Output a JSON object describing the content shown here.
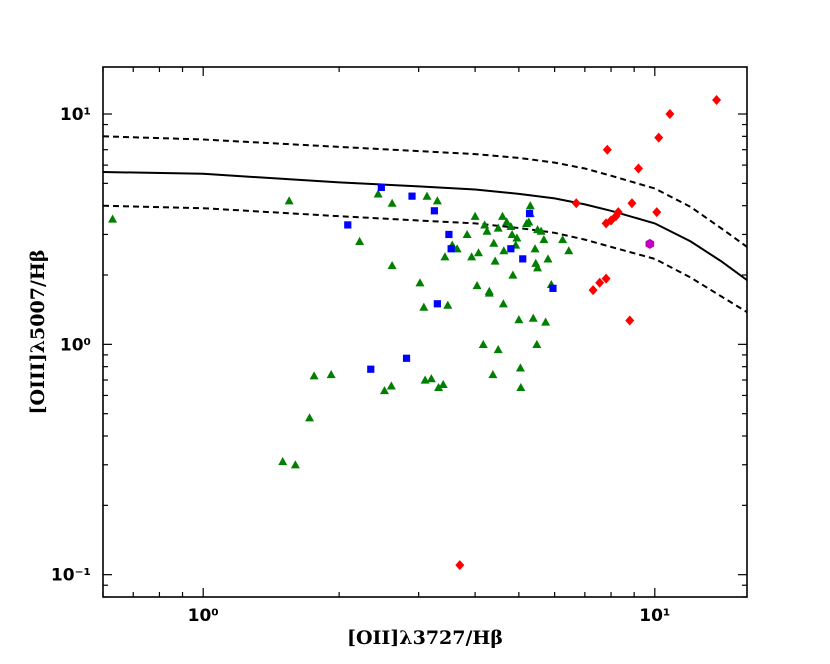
{
  "chart_data": {
    "type": "scatter",
    "title": "",
    "xlabel": "[OII]λ3727/Hβ",
    "ylabel": "[OIII]λ5007/Hβ",
    "x_scale": "log",
    "y_scale": "log",
    "xlim": [
      0.6,
      16
    ],
    "ylim": [
      0.08,
      16
    ],
    "x_ticks": [
      {
        "value": 1,
        "label": "10⁰"
      },
      {
        "value": 10,
        "label": "10¹"
      }
    ],
    "y_ticks": [
      {
        "value": 0.1,
        "label": "10⁻¹"
      },
      {
        "value": 1,
        "label": "10⁰"
      },
      {
        "value": 10,
        "label": "10¹"
      }
    ],
    "grid": false,
    "legend": "none",
    "curves": [
      {
        "style": "solid",
        "color": "#000000",
        "points": [
          [
            0.6,
            5.6
          ],
          [
            1,
            5.5
          ],
          [
            2,
            5.05
          ],
          [
            3,
            4.85
          ],
          [
            4,
            4.7
          ],
          [
            5,
            4.5
          ],
          [
            6,
            4.3
          ],
          [
            7,
            4.05
          ],
          [
            8,
            3.8
          ],
          [
            10,
            3.35
          ],
          [
            12,
            2.8
          ],
          [
            14,
            2.3
          ],
          [
            16,
            1.9
          ]
        ]
      },
      {
        "style": "dashed",
        "color": "#000000",
        "points": [
          [
            0.6,
            8.0
          ],
          [
            1,
            7.75
          ],
          [
            2,
            7.2
          ],
          [
            3,
            6.9
          ],
          [
            4,
            6.7
          ],
          [
            5,
            6.45
          ],
          [
            6,
            6.15
          ],
          [
            7,
            5.8
          ],
          [
            8,
            5.4
          ],
          [
            10,
            4.75
          ],
          [
            12,
            3.95
          ],
          [
            14,
            3.2
          ],
          [
            16,
            2.65
          ]
        ]
      },
      {
        "style": "dashed",
        "color": "#000000",
        "points": [
          [
            0.6,
            4.0
          ],
          [
            1,
            3.9
          ],
          [
            2,
            3.6
          ],
          [
            3,
            3.45
          ],
          [
            4,
            3.35
          ],
          [
            5,
            3.2
          ],
          [
            6,
            3.05
          ],
          [
            7,
            2.85
          ],
          [
            8,
            2.65
          ],
          [
            10,
            2.35
          ],
          [
            12,
            1.95
          ],
          [
            14,
            1.62
          ],
          [
            16,
            1.38
          ]
        ]
      }
    ],
    "series": [
      {
        "marker": "triangle",
        "color": "#007f00",
        "points": [
          [
            0.63,
            3.5
          ],
          [
            1.5,
            0.31
          ],
          [
            1.55,
            4.2
          ],
          [
            1.6,
            0.3
          ],
          [
            1.72,
            0.48
          ],
          [
            1.76,
            0.73
          ],
          [
            1.92,
            0.74
          ],
          [
            2.22,
            2.8
          ],
          [
            2.44,
            4.5
          ],
          [
            2.52,
            0.63
          ],
          [
            2.61,
            0.66
          ],
          [
            2.62,
            4.1
          ],
          [
            2.62,
            2.2
          ],
          [
            3.02,
            1.85
          ],
          [
            3.08,
            1.45
          ],
          [
            3.1,
            0.7
          ],
          [
            3.13,
            4.4
          ],
          [
            3.2,
            0.71
          ],
          [
            3.32,
            0.65
          ],
          [
            3.4,
            0.67
          ],
          [
            3.43,
            2.4
          ],
          [
            3.48,
            1.48
          ],
          [
            3.56,
            2.7
          ],
          [
            3.65,
            2.6
          ],
          [
            3.84,
            3.0
          ],
          [
            3.93,
            2.4
          ],
          [
            4.0,
            3.6
          ],
          [
            4.04,
            1.8
          ],
          [
            4.07,
            2.5
          ],
          [
            4.17,
            1.0
          ],
          [
            4.2,
            3.3
          ],
          [
            4.25,
            3.1
          ],
          [
            4.3,
            1.7
          ],
          [
            4.3,
            1.67
          ],
          [
            4.38,
            0.74
          ],
          [
            4.4,
            2.75
          ],
          [
            4.43,
            2.3
          ],
          [
            4.5,
            3.2
          ],
          [
            4.5,
            0.95
          ],
          [
            4.6,
            3.6
          ],
          [
            4.62,
            1.5
          ],
          [
            4.63,
            2.55
          ],
          [
            4.7,
            3.4
          ],
          [
            4.8,
            3.25
          ],
          [
            4.85,
            2.0
          ],
          [
            4.95,
            2.9
          ],
          [
            5.0,
            1.28
          ],
          [
            5.04,
            0.79
          ],
          [
            5.05,
            0.65
          ],
          [
            5.2,
            3.35
          ],
          [
            5.26,
            3.4
          ],
          [
            5.3,
            4.0
          ],
          [
            5.38,
            1.3
          ],
          [
            5.43,
            2.6
          ],
          [
            5.45,
            2.25
          ],
          [
            5.48,
            1.0
          ],
          [
            5.5,
            3.15
          ],
          [
            5.5,
            2.15
          ],
          [
            5.6,
            3.1
          ],
          [
            5.68,
            2.85
          ],
          [
            5.73,
            1.25
          ],
          [
            5.8,
            2.35
          ],
          [
            5.9,
            1.82
          ],
          [
            6.25,
            2.85
          ],
          [
            6.45,
            2.55
          ],
          [
            5.3,
            3.7
          ],
          [
            4.83,
            3.0
          ],
          [
            4.92,
            2.7
          ],
          [
            3.3,
            4.2
          ]
        ]
      },
      {
        "marker": "square",
        "color": "#0000ff",
        "points": [
          [
            2.09,
            3.3
          ],
          [
            2.35,
            0.78
          ],
          [
            2.48,
            4.8
          ],
          [
            2.82,
            0.87
          ],
          [
            2.9,
            4.4
          ],
          [
            3.25,
            3.8
          ],
          [
            3.3,
            1.5
          ],
          [
            3.5,
            3.0
          ],
          [
            3.54,
            2.6
          ],
          [
            4.8,
            2.6
          ],
          [
            5.1,
            2.35
          ],
          [
            5.28,
            3.7
          ],
          [
            5.95,
            1.75
          ]
        ]
      },
      {
        "marker": "diamond",
        "color": "#ff0000",
        "points": [
          [
            3.7,
            0.11
          ],
          [
            6.7,
            4.1
          ],
          [
            7.3,
            1.72
          ],
          [
            7.55,
            1.85
          ],
          [
            7.8,
            1.93
          ],
          [
            7.8,
            3.35
          ],
          [
            7.85,
            7.0
          ],
          [
            8.0,
            3.45
          ],
          [
            8.2,
            3.6
          ],
          [
            8.3,
            3.75
          ],
          [
            8.8,
            1.27
          ],
          [
            8.9,
            4.1
          ],
          [
            9.2,
            5.8
          ],
          [
            10.1,
            3.75
          ],
          [
            10.2,
            7.9
          ],
          [
            10.8,
            10.0
          ],
          [
            13.7,
            11.5
          ]
        ]
      },
      {
        "marker": "hexagon",
        "color": "#bf00bf",
        "points": [
          [
            9.75,
            2.73
          ]
        ]
      }
    ]
  }
}
